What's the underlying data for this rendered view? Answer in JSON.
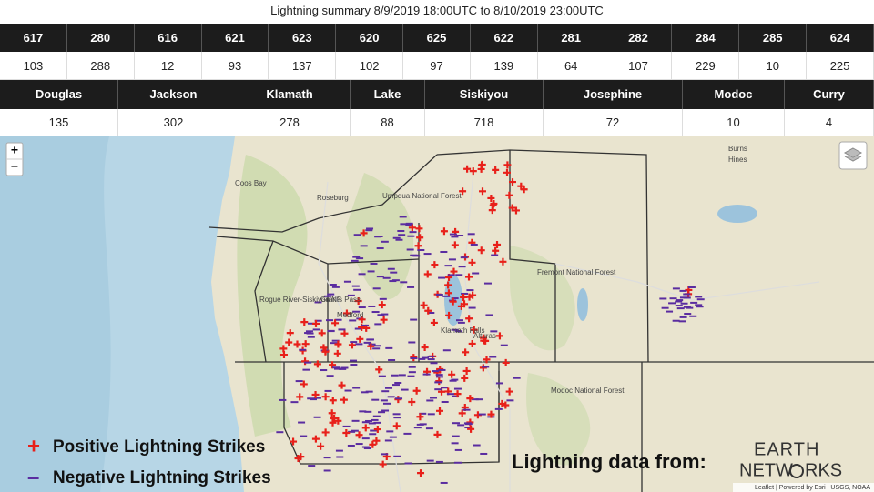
{
  "header": {
    "title": "Lightning summary 8/9/2019 18:00UTC to 8/10/2019 23:00UTC"
  },
  "table1": {
    "header": [
      "617",
      "280",
      "616",
      "621",
      "623",
      "620",
      "625",
      "622",
      "281",
      "282",
      "284",
      "285",
      "624"
    ],
    "row": [
      "103",
      "288",
      "12",
      "93",
      "137",
      "102",
      "97",
      "139",
      "64",
      "107",
      "229",
      "10",
      "225"
    ]
  },
  "table2": {
    "header": [
      "Douglas",
      "Jackson",
      "Klamath",
      "Lake",
      "Siskiyou",
      "Josephine",
      "Modoc",
      "Curry"
    ],
    "row": [
      "135",
      "302",
      "278",
      "88",
      "718",
      "72",
      "10",
      "4"
    ]
  },
  "map": {
    "controls": {
      "zoom_in": "+",
      "zoom_out": "−"
    },
    "labels": [
      "Coos Bay",
      "Roseburg",
      "Grants Pass",
      "Medford",
      "Klamath Falls",
      "Alturas",
      "Burns",
      "Hines",
      "Fremont National Forest",
      "Modoc National Forest",
      "Rogue River-Siskiyou NF",
      "Umpqua National Forest"
    ],
    "legend": [
      {
        "symbol": "+",
        "label": "Positive Lightning Strikes"
      },
      {
        "symbol": "–",
        "label": "Negative Lightning Strikes"
      }
    ],
    "source": "Lightning data from:",
    "logo": [
      "EARTH",
      "NETW",
      "RKS"
    ],
    "attribution": "Leaflet | Powered by Esri | USGS, NOAA"
  }
}
